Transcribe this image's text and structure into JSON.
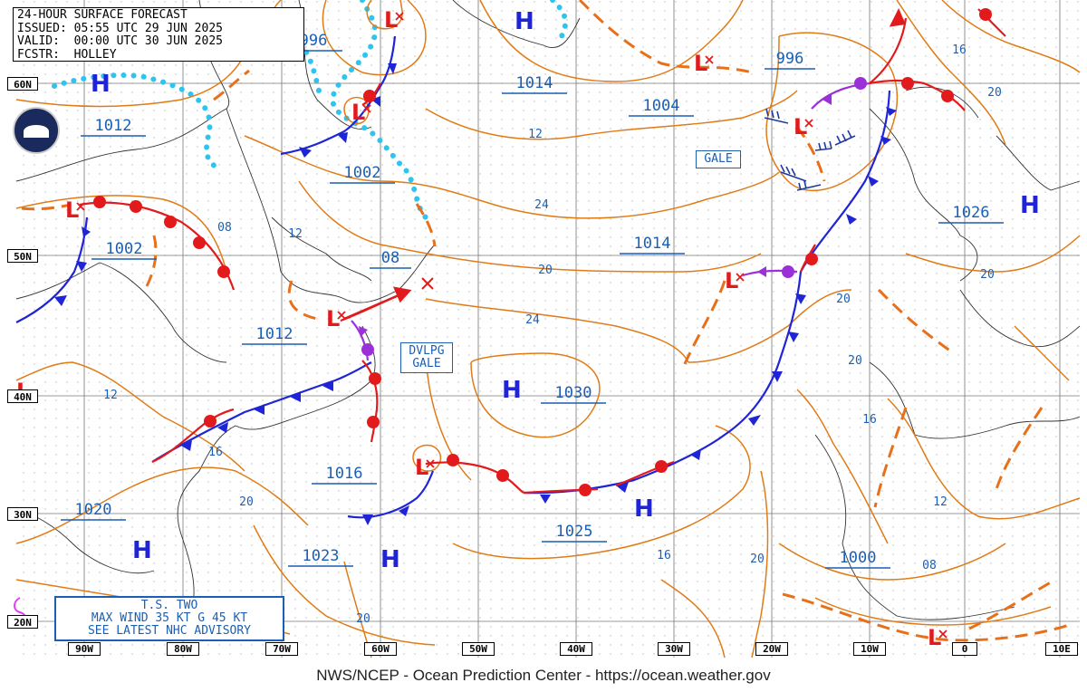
{
  "header": {
    "line1": "24-HOUR SURFACE FORECAST",
    "line2": "ISSUED: 05:55 UTC 29 JUN 2025",
    "line3": "VALID:  00:00 UTC 30 JUN 2025",
    "line4": "FCSTR:  HOLLEY"
  },
  "footer": "NWS/NCEP - Ocean Prediction Center - https://ocean.weather.gov",
  "tropical_box": {
    "line1": "T.S. TWO",
    "line2": "MAX WIND 35 KT G 45 KT",
    "line3": "SEE LATEST NHC ADVISORY"
  },
  "gale_label": "GALE",
  "dvlpg_gale_label": {
    "line1": "DVLPG",
    "line2": "GALE"
  },
  "latitude_labels": [
    "60N",
    "50N",
    "40N",
    "30N",
    "20N"
  ],
  "longitude_labels": [
    "90W",
    "80W",
    "70W",
    "60W",
    "50W",
    "40W",
    "30W",
    "20W",
    "10W",
    "0",
    "10E"
  ],
  "pressure_labels": [
    "996",
    "1014",
    "1004",
    "996",
    "1012",
    "1002",
    "1002",
    "08",
    "1014",
    "1026",
    "1012",
    "1030",
    "1016",
    "1020",
    "1025",
    "1023",
    "1000"
  ],
  "isobar_value_labels": [
    "12",
    "16",
    "08",
    "12",
    "20",
    "24",
    "20",
    "12",
    "16",
    "20",
    "20",
    "16",
    "12",
    "20",
    "24",
    "20",
    "08",
    "20",
    "20",
    "16"
  ],
  "high_symbol": "H",
  "low_symbol": "L",
  "colors": {
    "isobar": "#e07b16",
    "front_blue": "#1f25d6",
    "front_red": "#e31a1c",
    "occluded": "#9b30d9",
    "ice": "#2ec4f0",
    "label_blue": "#1a5fb4",
    "low": "#e31a1c",
    "high": "#1f25d6"
  }
}
